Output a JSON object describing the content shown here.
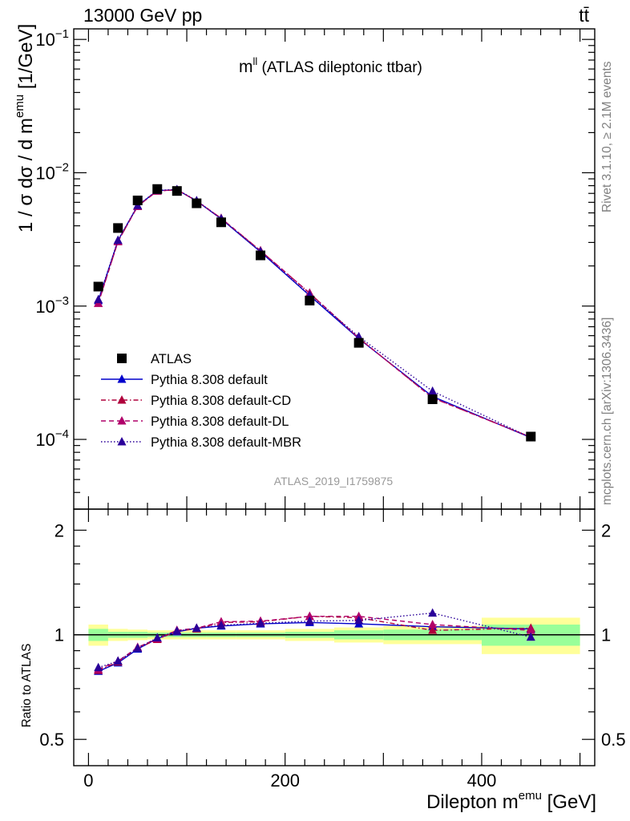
{
  "header": {
    "energy_label": "13000 GeV pp",
    "process_label": "tt̄",
    "observable_main": "m",
    "observable_sup": "ll",
    "observable_rest": " (ATLAS dileptonic ttbar)",
    "analysis_id": "ATLAS_2019_I1759875"
  },
  "sidebar": {
    "rivet_label": "Rivet 3.1.10, ≥ 2.1M events",
    "mcplots_label": "mcplots.cern.ch [arXiv:1306.3436]"
  },
  "colors": {
    "data": "#000000",
    "default": "#0000cc",
    "default_cd": "#b0003c",
    "default_dl": "#b0006a",
    "default_mbr": "#2a0099",
    "band_inner": "#99ff99",
    "band_outer": "#ffff99"
  },
  "chart_data": [
    {
      "type": "line",
      "panel": "main",
      "ylabel_parts": [
        "1 / σ  dσ / d m",
        "emu",
        " [1/GeV]"
      ],
      "yscale": "log",
      "ylim": [
        3e-05,
        0.12
      ],
      "xlim": [
        -15,
        515
      ],
      "y_tick_labels": [
        {
          "value": 0.1,
          "base": "10",
          "exp": "−1"
        },
        {
          "value": 0.01,
          "base": "10",
          "exp": "−2"
        },
        {
          "value": 0.001,
          "base": "10",
          "exp": "−3"
        },
        {
          "value": 0.0001,
          "base": "10",
          "exp": "−4"
        }
      ],
      "x": [
        10,
        30,
        50,
        70,
        90,
        110,
        135,
        175,
        225,
        275,
        350,
        450
      ],
      "series": [
        {
          "name": "ATLAS",
          "style": "data",
          "values": [
            0.0014,
            0.00385,
            0.0062,
            0.00755,
            0.0073,
            0.0059,
            0.00425,
            0.0024,
            0.0011,
            0.00053,
            0.0002,
            0.000105
          ]
        },
        {
          "name": "Pythia 8.308 default",
          "style": "solid",
          "values": [
            0.0011,
            0.0031,
            0.00565,
            0.00735,
            0.00745,
            0.00615,
            0.0045,
            0.00255,
            0.0012,
            0.00057,
            0.00021,
            0.000103
          ]
        },
        {
          "name": "Pythia 8.308 default-CD",
          "style": "dashdot",
          "values": [
            0.00105,
            0.00305,
            0.0056,
            0.0073,
            0.00745,
            0.00615,
            0.00455,
            0.0026,
            0.00125,
            0.000575,
            0.000205,
            0.000104
          ]
        },
        {
          "name": "Pythia 8.308 default-DL",
          "style": "dashed",
          "values": [
            0.00105,
            0.00305,
            0.0056,
            0.0073,
            0.00745,
            0.00615,
            0.00455,
            0.0026,
            0.00125,
            0.000575,
            0.000205,
            0.000104
          ]
        },
        {
          "name": "Pythia 8.308 default-MBR",
          "style": "dotted",
          "values": [
            0.00112,
            0.00312,
            0.00568,
            0.00738,
            0.00748,
            0.00618,
            0.00452,
            0.00257,
            0.00121,
            0.00059,
            0.00023,
            0.000103
          ]
        }
      ]
    },
    {
      "type": "line",
      "panel": "ratio",
      "ylabel": "Ratio to ATLAS",
      "xlabel_parts": [
        "Dilepton m",
        "emu",
        " [GeV]"
      ],
      "yscale": "log",
      "ylim": [
        0.42,
        2.3
      ],
      "xlim": [
        -15,
        515
      ],
      "y_tick_labels": [
        {
          "value": 2,
          "label": "2"
        },
        {
          "value": 1,
          "label": "1"
        },
        {
          "value": 0.5,
          "label": "0.5"
        }
      ],
      "x_tick_labels": [
        {
          "value": 0,
          "label": "0"
        },
        {
          "value": 200,
          "label": "200"
        },
        {
          "value": 400,
          "label": "400"
        }
      ],
      "x": [
        10,
        30,
        50,
        70,
        90,
        110,
        135,
        175,
        225,
        275,
        350,
        450
      ],
      "bin_edges": [
        0,
        20,
        40,
        60,
        80,
        100,
        120,
        150,
        200,
        250,
        300,
        400,
        500
      ],
      "band_inner": [
        0.04,
        0.02,
        0.02,
        0.015,
        0.015,
        0.015,
        0.015,
        0.015,
        0.02,
        0.03,
        0.035,
        0.07
      ],
      "band_outer": [
        0.07,
        0.04,
        0.035,
        0.03,
        0.03,
        0.03,
        0.03,
        0.03,
        0.04,
        0.05,
        0.06,
        0.12
      ],
      "series": [
        {
          "name": "Pythia 8.308 default",
          "style": "solid",
          "values": [
            0.785,
            0.83,
            0.91,
            0.975,
            1.02,
            1.045,
            1.06,
            1.075,
            1.085,
            1.075,
            1.055,
            1.04
          ]
        },
        {
          "name": "Pythia 8.308 default-CD",
          "style": "dashdot",
          "values": [
            0.79,
            0.835,
            0.915,
            0.97,
            1.025,
            1.04,
            1.085,
            1.09,
            1.13,
            1.12,
            1.03,
            1.045
          ]
        },
        {
          "name": "Pythia 8.308 default-DL",
          "style": "dashed",
          "values": [
            0.795,
            0.84,
            0.92,
            0.975,
            1.03,
            1.045,
            1.09,
            1.095,
            1.13,
            1.13,
            1.07,
            1.03
          ]
        },
        {
          "name": "Pythia 8.308 default-MBR",
          "style": "dotted",
          "values": [
            0.805,
            0.84,
            0.915,
            0.98,
            1.025,
            1.045,
            1.065,
            1.08,
            1.095,
            1.1,
            1.155,
            0.985
          ]
        }
      ]
    }
  ]
}
